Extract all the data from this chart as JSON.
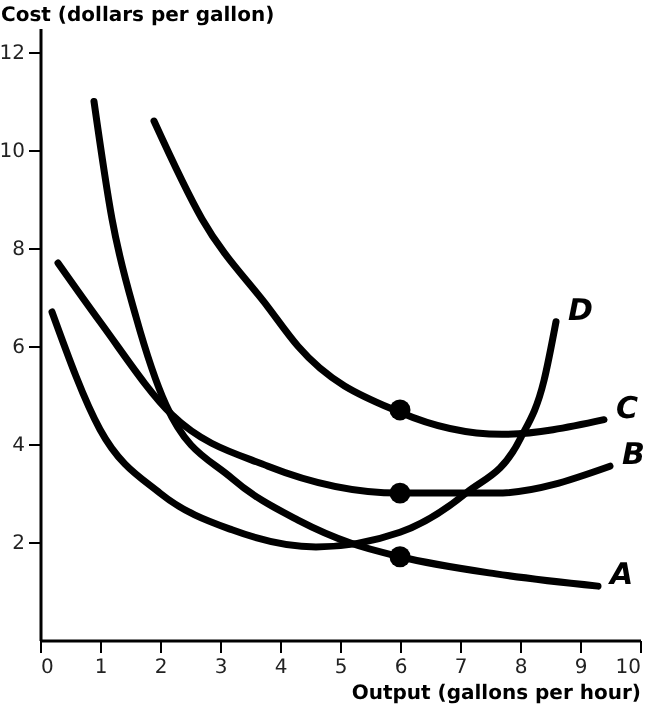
{
  "chart_data": {
    "type": "line",
    "xlabel": "Output (gallons per hour)",
    "ylabel": "Cost (dollars per gallon)",
    "xlim": [
      0,
      10
    ],
    "ylim": [
      0,
      12.5
    ],
    "xticks": [
      0,
      1,
      2,
      3,
      4,
      5,
      6,
      7,
      8,
      9,
      10
    ],
    "yticks": [
      2,
      4,
      6,
      8,
      10,
      12
    ],
    "grid": false,
    "marker": "none",
    "line_style": "solid",
    "series": [
      {
        "name": "A",
        "color": "#000000",
        "x": [
          0.9,
          1.2,
          1.6,
          2.1,
          3.2,
          4.3,
          5.2,
          6,
          7.6,
          9.3
        ],
        "values": [
          11,
          8.6,
          6.6,
          4.8,
          3.3,
          2.45,
          1.97,
          1.7,
          1.35,
          1.1
        ]
      },
      {
        "name": "B",
        "color": "#000000",
        "x": [
          0.3,
          1,
          2.2,
          3.8,
          6,
          7.6,
          9.5
        ],
        "values": [
          7.7,
          6.5,
          4.6,
          3.55,
          3,
          3,
          3.55
        ]
      },
      {
        "name": "C",
        "color": "#000000",
        "x": [
          1.9,
          2.7,
          3.8,
          4.3,
          6,
          7.7,
          9.4
        ],
        "values": [
          10.6,
          8.6,
          6.8,
          6,
          4.65,
          4.2,
          4.5
        ]
      },
      {
        "name": "D",
        "color": "#000000",
        "x": [
          0.2,
          1,
          2,
          3.2,
          4.6,
          6,
          7.1,
          8,
          8.4,
          8.6
        ],
        "values": [
          6.7,
          4.3,
          3,
          2.25,
          1.9,
          2.2,
          3,
          4.1,
          5.3,
          6.5
        ]
      },
      {
        "type": "scatter",
        "color": "#000000",
        "marker": "circle",
        "x": [
          6,
          6,
          6
        ],
        "values": [
          1.7,
          3,
          4.7
        ]
      }
    ]
  }
}
